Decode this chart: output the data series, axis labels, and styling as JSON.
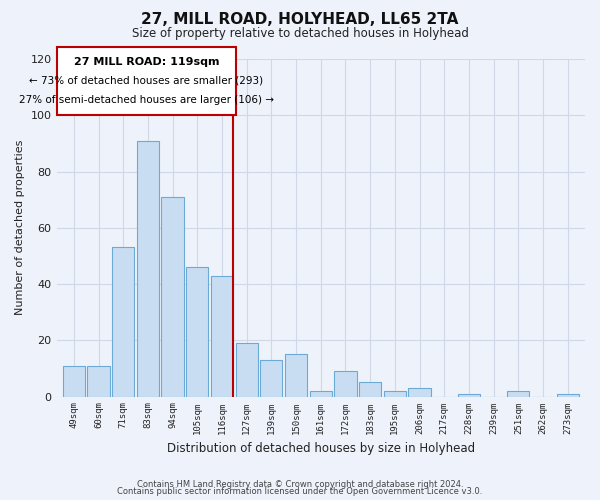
{
  "title": "27, MILL ROAD, HOLYHEAD, LL65 2TA",
  "subtitle": "Size of property relative to detached houses in Holyhead",
  "xlabel": "Distribution of detached houses by size in Holyhead",
  "ylabel": "Number of detached properties",
  "categories": [
    "49sqm",
    "60sqm",
    "71sqm",
    "83sqm",
    "94sqm",
    "105sqm",
    "116sqm",
    "127sqm",
    "139sqm",
    "150sqm",
    "161sqm",
    "172sqm",
    "183sqm",
    "195sqm",
    "206sqm",
    "217sqm",
    "228sqm",
    "239sqm",
    "251sqm",
    "262sqm",
    "273sqm"
  ],
  "values": [
    11,
    11,
    53,
    91,
    71,
    46,
    43,
    19,
    13,
    15,
    2,
    9,
    5,
    2,
    3,
    0,
    1,
    0,
    2,
    0,
    1
  ],
  "bar_color": "#c9ddf2",
  "bar_edge_color": "#6aaad4",
  "highlight_index": 6,
  "highlight_line_color": "#bb0000",
  "highlight_box_color": "#bb0000",
  "ylim": [
    0,
    120
  ],
  "yticks": [
    0,
    20,
    40,
    60,
    80,
    100,
    120
  ],
  "annotation_title": "27 MILL ROAD: 119sqm",
  "annotation_line1": "← 73% of detached houses are smaller (293)",
  "annotation_line2": "27% of semi-detached houses are larger (106) →",
  "footer1": "Contains HM Land Registry data © Crown copyright and database right 2024.",
  "footer2": "Contains public sector information licensed under the Open Government Licence v3.0.",
  "background_color": "#eef2fa"
}
